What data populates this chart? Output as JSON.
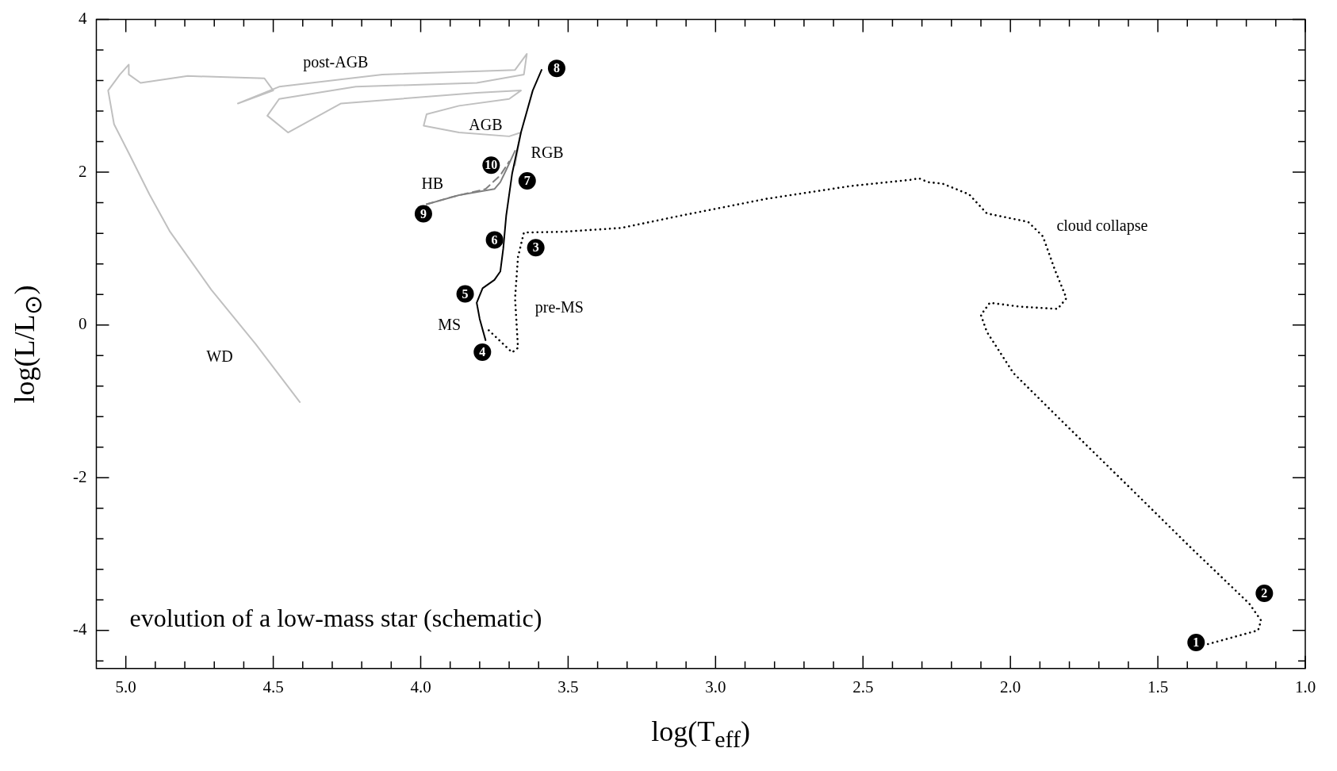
{
  "chart_data": {
    "type": "line",
    "title": "evolution of a low-mass star (schematic)",
    "xlabel": "log(T$_{eff}$)",
    "ylabel": "log(L/L$_{⊙}$)",
    "xlim": [
      5.1,
      1.0
    ],
    "ylim": [
      -4.5,
      4
    ],
    "xticks": [
      {
        "value": 5.0,
        "label": "5.0"
      },
      {
        "value": 4.9,
        "label": null
      },
      {
        "value": 4.8,
        "label": null
      },
      {
        "value": 4.7,
        "label": null
      },
      {
        "value": 4.6,
        "label": null
      },
      {
        "value": 4.5,
        "label": "4.5"
      },
      {
        "value": 4.4,
        "label": null
      },
      {
        "value": 4.3,
        "label": null
      },
      {
        "value": 4.2,
        "label": null
      },
      {
        "value": 4.1,
        "label": null
      },
      {
        "value": 4.0,
        "label": "4.0"
      },
      {
        "value": 3.9,
        "label": null
      },
      {
        "value": 3.8,
        "label": null
      },
      {
        "value": 3.7,
        "label": null
      },
      {
        "value": 3.6,
        "label": null
      },
      {
        "value": 3.5,
        "label": "3.5"
      },
      {
        "value": 3.4,
        "label": null
      },
      {
        "value": 3.3,
        "label": null
      },
      {
        "value": 3.2,
        "label": null
      },
      {
        "value": 3.1,
        "label": null
      },
      {
        "value": 3.0,
        "label": "3.0"
      },
      {
        "value": 2.9,
        "label": null
      },
      {
        "value": 2.8,
        "label": null
      },
      {
        "value": 2.7,
        "label": null
      },
      {
        "value": 2.6,
        "label": null
      },
      {
        "value": 2.5,
        "label": "2.5"
      },
      {
        "value": 2.4,
        "label": null
      },
      {
        "value": 2.3,
        "label": null
      },
      {
        "value": 2.2,
        "label": null
      },
      {
        "value": 2.1,
        "label": null
      },
      {
        "value": 2.0,
        "label": "2.0"
      },
      {
        "value": 1.9,
        "label": null
      },
      {
        "value": 1.8,
        "label": null
      },
      {
        "value": 1.7,
        "label": null
      },
      {
        "value": 1.6,
        "label": null
      },
      {
        "value": 1.5,
        "label": "1.5"
      },
      {
        "value": 1.4,
        "label": null
      },
      {
        "value": 1.3,
        "label": null
      },
      {
        "value": 1.2,
        "label": null
      },
      {
        "value": 1.1,
        "label": null
      },
      {
        "value": 1.0,
        "label": "1.0"
      }
    ],
    "yticks": [
      {
        "value": -4.4,
        "label": null
      },
      -4,
      {
        "value": -3.6,
        "label": null
      },
      {
        "value": -3.2,
        "label": null
      },
      {
        "value": -2.8,
        "label": null
      },
      {
        "value": -2.4,
        "label": null
      },
      -2,
      {
        "value": -1.6,
        "label": null
      },
      {
        "value": -1.2,
        "label": null
      },
      {
        "value": -0.8,
        "label": null
      },
      {
        "value": -0.4,
        "label": null
      },
      0,
      {
        "value": 0.4,
        "label": null
      },
      {
        "value": 0.8,
        "label": null
      },
      {
        "value": 1.2,
        "label": null
      },
      {
        "value": 1.6,
        "label": null
      },
      2,
      {
        "value": 2.4,
        "label": null
      },
      {
        "value": 2.8,
        "label": null
      },
      {
        "value": 3.2,
        "label": null
      },
      {
        "value": 3.6,
        "label": null
      },
      4
    ],
    "grid": false,
    "marker": "none",
    "series": [
      {
        "color": "#000000",
        "line_style": "dotted",
        "x": [
          1.33,
          1.16,
          1.15,
          1.19,
          1.39,
          1.59,
          1.82,
          1.99,
          2.08,
          2.1,
          2.07,
          1.97,
          1.84,
          1.81,
          1.85,
          1.89,
          1.94,
          2.08,
          2.14,
          2.23,
          2.28,
          2.31,
          2.34,
          2.54,
          2.83,
          3.12,
          3.32,
          3.52,
          3.65,
          3.67,
          3.68,
          3.67,
          3.69,
          3.75,
          3.78
        ],
        "values": [
          -4.18,
          -4.0,
          -3.87,
          -3.65,
          -2.91,
          -2.15,
          -1.28,
          -0.63,
          -0.09,
          0.13,
          0.29,
          0.24,
          0.21,
          0.35,
          0.73,
          1.16,
          1.35,
          1.46,
          1.71,
          1.85,
          1.87,
          1.92,
          1.9,
          1.82,
          1.65,
          1.43,
          1.27,
          1.22,
          1.21,
          0.89,
          0.35,
          -0.3,
          -0.36,
          -0.14,
          -0.03
        ]
      },
      {
        "color": "#000000",
        "line_style": "solid",
        "x": [
          3.78,
          3.8,
          3.81,
          3.79,
          3.75,
          3.73,
          3.72,
          3.71,
          3.69,
          3.66,
          3.62,
          3.59
        ],
        "values": [
          -0.2,
          0.08,
          0.29,
          0.48,
          0.59,
          0.7,
          1.0,
          1.43,
          1.98,
          2.52,
          3.07,
          3.34
        ]
      },
      {
        "color": "#808080",
        "line_style": "solid",
        "x": [
          3.98,
          3.87,
          3.75,
          3.73,
          3.71,
          3.68
        ],
        "values": [
          1.58,
          1.7,
          1.78,
          1.87,
          2.03,
          2.28
        ]
      },
      {
        "color": "#808080",
        "line_style": "dashed",
        "x": [
          3.98,
          3.9,
          3.78,
          3.73,
          3.7
        ],
        "values": [
          1.58,
          1.67,
          1.78,
          1.96,
          2.14
        ]
      },
      {
        "color": "#c0c0c0",
        "line_style": "solid",
        "x": [
          3.68,
          3.66,
          3.7,
          3.87,
          3.99,
          3.98,
          3.87,
          3.7,
          3.66,
          3.81,
          4.27,
          4.45,
          4.52,
          4.48,
          4.22,
          3.81,
          3.65,
          3.64,
          3.68,
          4.13,
          4.48,
          4.62,
          4.5,
          4.53,
          4.79,
          4.95,
          4.99,
          4.99,
          5.02,
          5.06,
          5.04,
          4.99,
          4.92,
          4.85,
          4.71,
          4.56,
          4.41
        ],
        "values": [
          2.09,
          2.52,
          2.47,
          2.52,
          2.61,
          2.76,
          2.87,
          2.96,
          3.07,
          3.04,
          2.9,
          2.52,
          2.74,
          2.96,
          3.12,
          3.17,
          3.28,
          3.55,
          3.34,
          3.28,
          3.12,
          2.9,
          3.07,
          3.23,
          3.26,
          3.17,
          3.28,
          3.41,
          3.28,
          3.07,
          2.63,
          2.25,
          1.71,
          1.22,
          0.46,
          -0.25,
          -1.01
        ]
      }
    ],
    "annotations": [
      "post-AGB",
      "AGB",
      "RGB",
      "HB",
      "MS",
      "pre-MS",
      "cloud collapse",
      "WD",
      {
        "text": "1",
        "x": 1.33,
        "y": -4.18
      },
      {
        "text": "2",
        "x": 1.19,
        "y": -3.65
      },
      {
        "text": "3",
        "x": 3.65,
        "y": 1.21
      },
      {
        "text": "4",
        "x": 3.78,
        "y": -0.2
      },
      {
        "text": "5",
        "x": 3.79,
        "y": 0.48
      },
      {
        "text": "6",
        "x": 3.72,
        "y": 1.0
      },
      {
        "text": "7",
        "x": 3.69,
        "y": 1.98
      },
      {
        "text": "8",
        "x": 3.59,
        "y": 3.34
      },
      {
        "text": "9",
        "x": 3.98,
        "y": 1.58
      },
      {
        "text": "10",
        "x": 3.71,
        "y": 2.03
      }
    ]
  }
}
